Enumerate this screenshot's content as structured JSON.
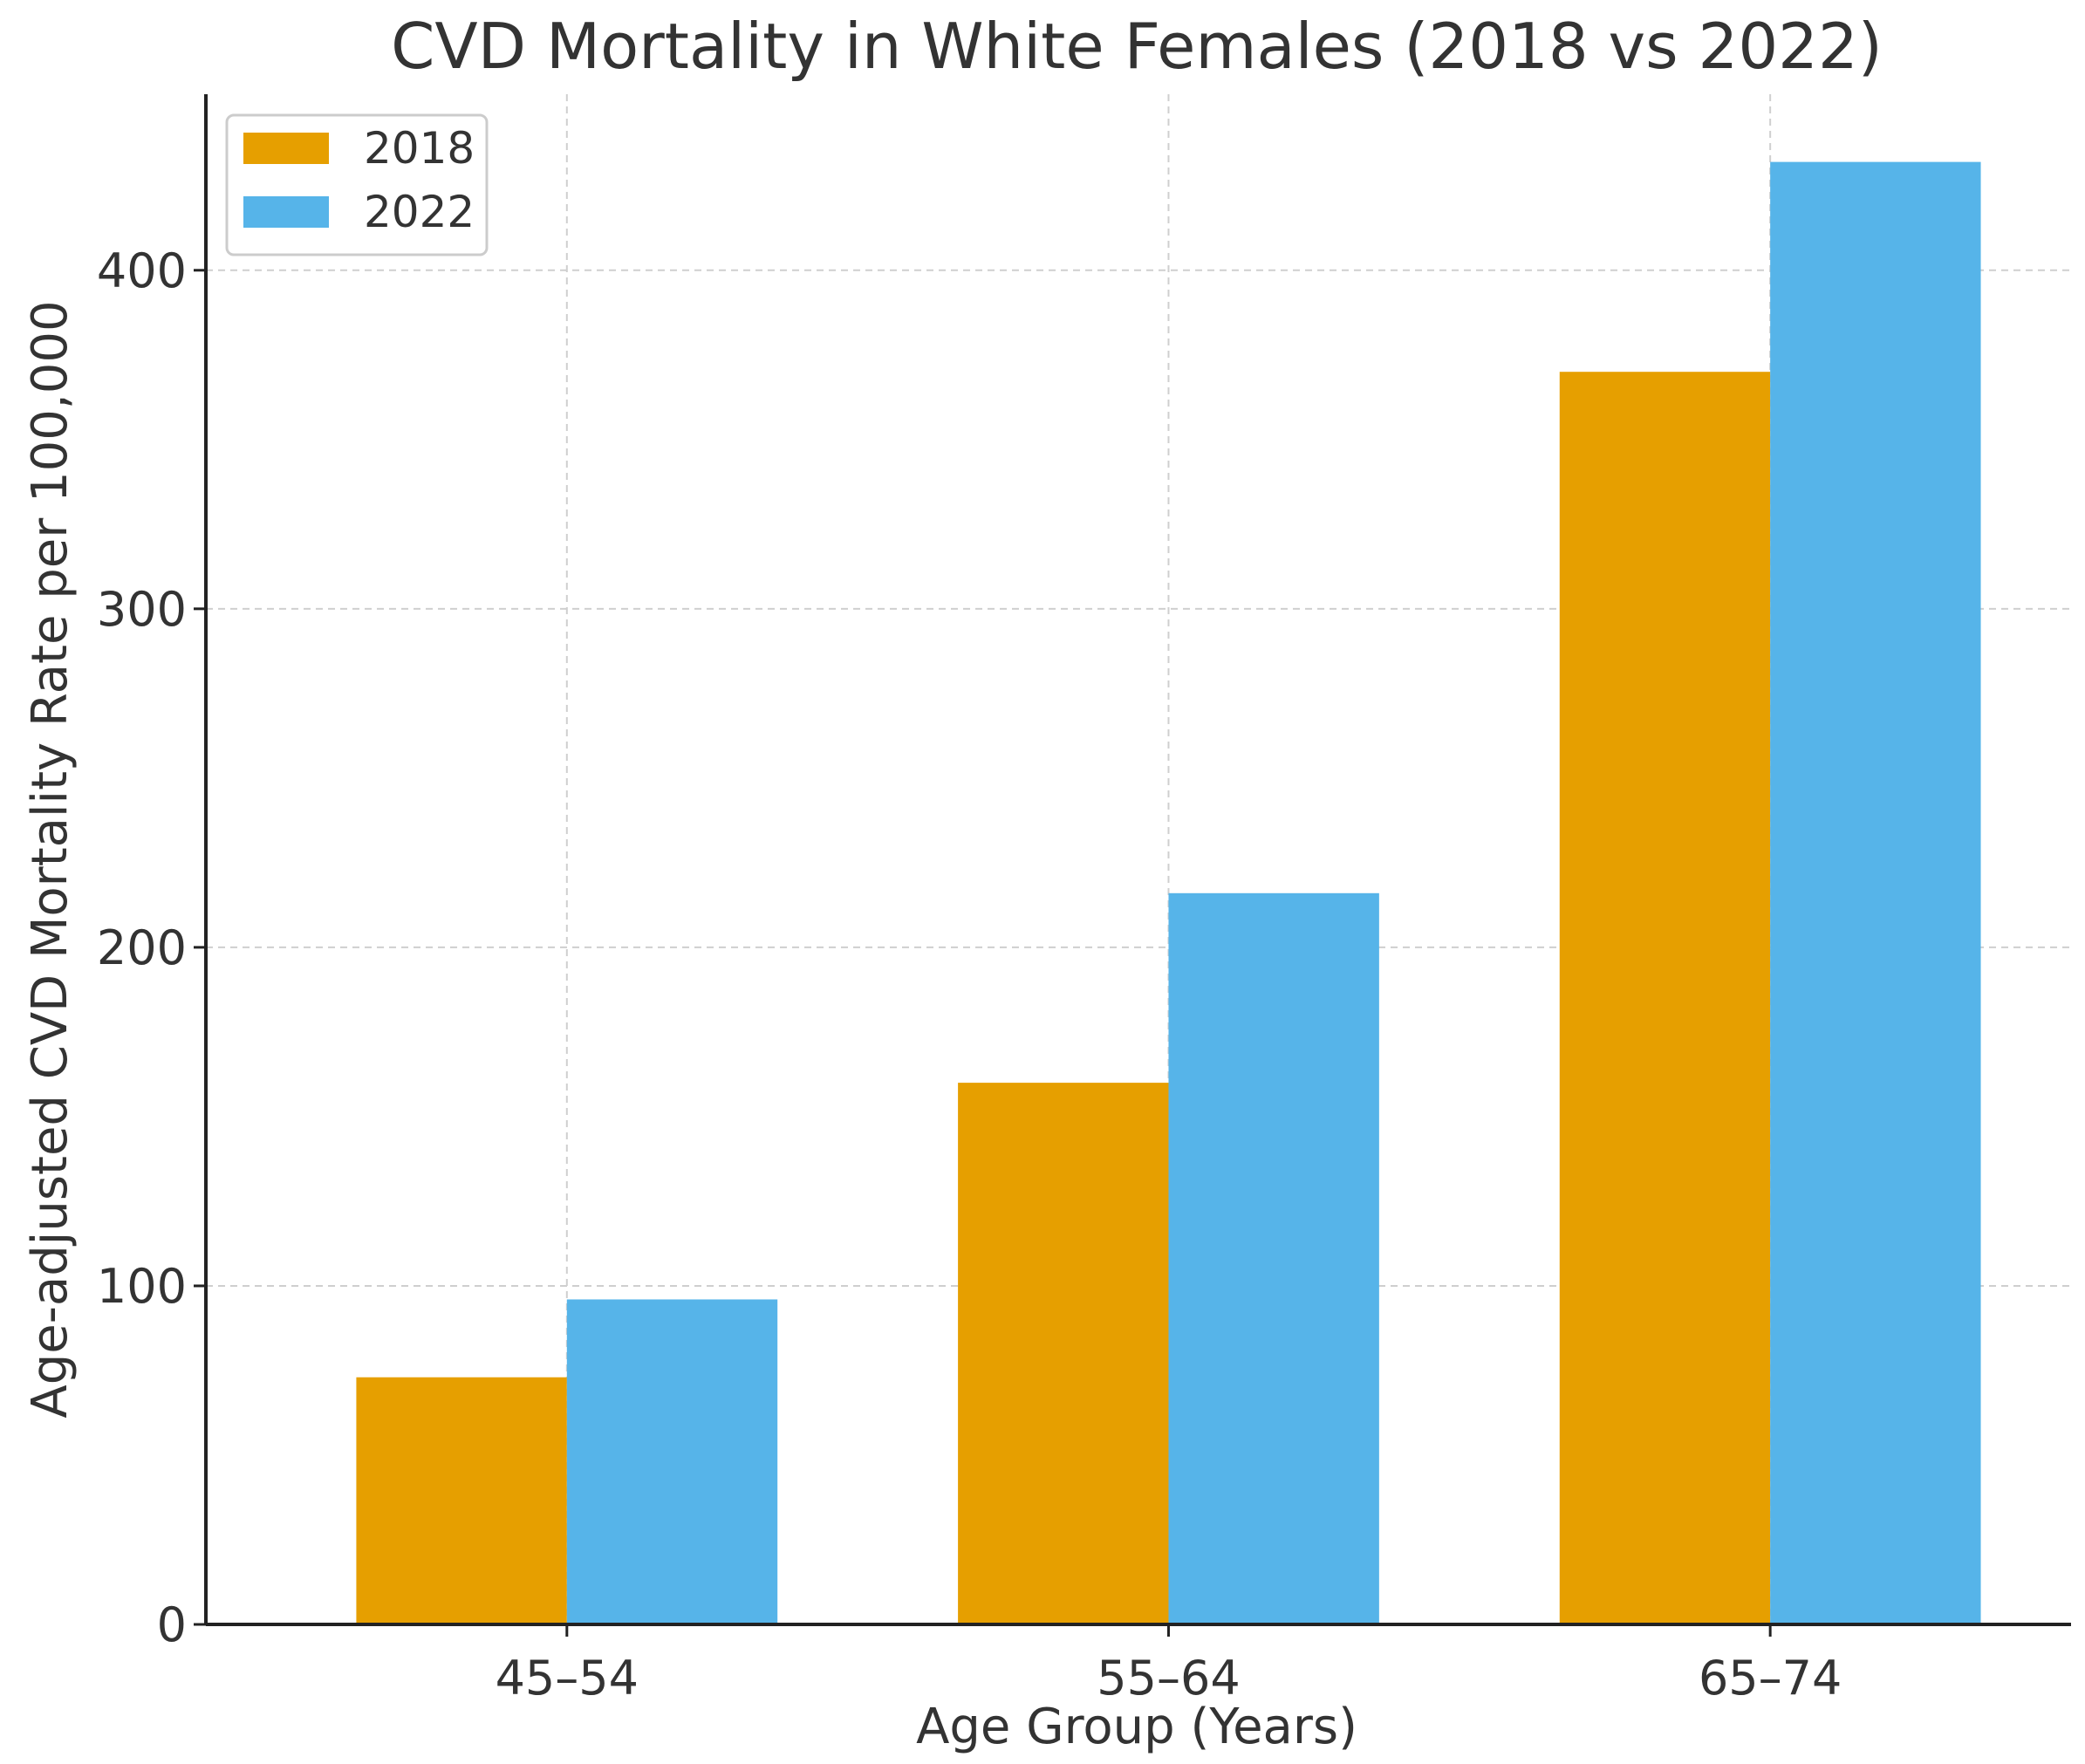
{
  "chart_data": {
    "type": "bar",
    "title": "CVD Mortality in White Females (2018 vs 2022)",
    "xlabel": "Age Group (Years)",
    "ylabel": "Age-adjusted CVD Mortality Rate per 100,000",
    "categories": [
      "45–54",
      "55–64",
      "65–74"
    ],
    "series": [
      {
        "name": "2018",
        "values": [
          73,
          160,
          370
        ],
        "color": "#E69F00"
      },
      {
        "name": "2022",
        "values": [
          96,
          216,
          432
        ],
        "color": "#56B4E9"
      }
    ],
    "ylim": [
      0,
      452
    ],
    "yticks": [
      0,
      100,
      200,
      300,
      400
    ],
    "ytick_labels": [
      "0",
      "100",
      "200",
      "300",
      "400"
    ],
    "grid": true,
    "legend_position": "top-left"
  }
}
